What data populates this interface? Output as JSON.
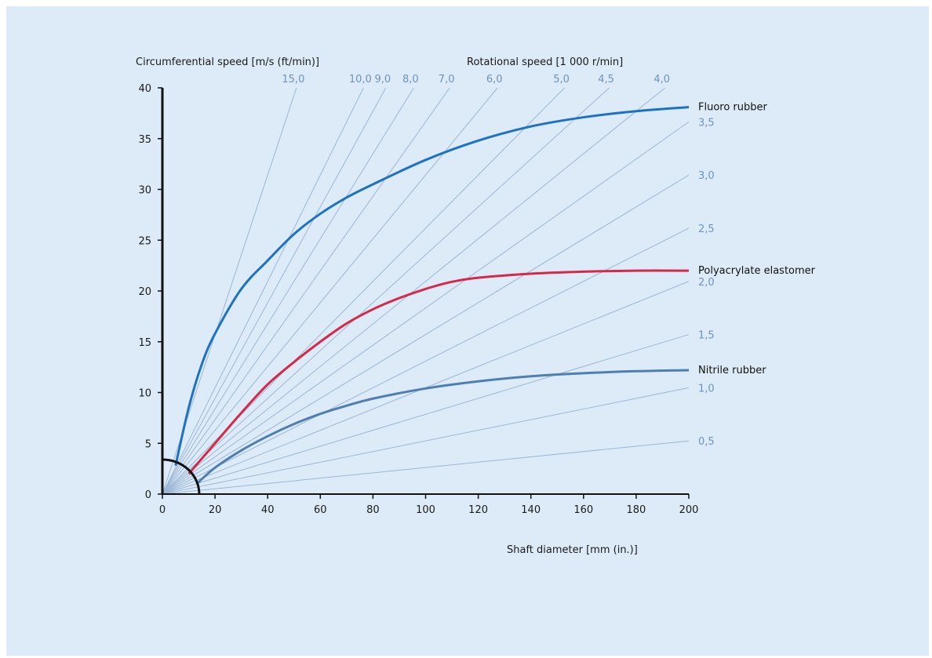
{
  "chart_data": {
    "type": "line",
    "title": "",
    "xlabel": "Shaft diameter [mm (in.)]",
    "ylabel": "Circumferential speed [m/s (ft/min)]",
    "top_label": "Rotational speed [1 000 r/min]",
    "xlim": [
      0,
      200
    ],
    "ylim": [
      0,
      40
    ],
    "x_ticks": [
      "0",
      "20",
      "40",
      "60",
      "80",
      "100",
      "120",
      "140",
      "160",
      "180",
      "200"
    ],
    "y_ticks": [
      "0",
      "5",
      "10",
      "15",
      "20",
      "25",
      "30",
      "35",
      "40"
    ],
    "grid": false,
    "rotational_speed_lines": [
      {
        "label": "15,0",
        "rpm_thousand": 15.0
      },
      {
        "label": "10,0",
        "rpm_thousand": 10.0
      },
      {
        "label": "9,0",
        "rpm_thousand": 9.0
      },
      {
        "label": "8,0",
        "rpm_thousand": 8.0
      },
      {
        "label": "7,0",
        "rpm_thousand": 7.0
      },
      {
        "label": "6,0",
        "rpm_thousand": 6.0
      },
      {
        "label": "5,0",
        "rpm_thousand": 5.0
      },
      {
        "label": "4,5",
        "rpm_thousand": 4.5
      },
      {
        "label": "4,0",
        "rpm_thousand": 4.0
      },
      {
        "label": "3,5",
        "rpm_thousand": 3.5
      },
      {
        "label": "3,0",
        "rpm_thousand": 3.0
      },
      {
        "label": "2,5",
        "rpm_thousand": 2.5
      },
      {
        "label": "2,0",
        "rpm_thousand": 2.0
      },
      {
        "label": "1,5",
        "rpm_thousand": 1.5
      },
      {
        "label": "1,0",
        "rpm_thousand": 1.0
      },
      {
        "label": "0,5",
        "rpm_thousand": 0.5
      }
    ],
    "series": [
      {
        "name": "Fluoro rubber",
        "color": "#1d72c1",
        "x": [
          5,
          10,
          15,
          20,
          30,
          40,
          50,
          60,
          70,
          80,
          100,
          120,
          140,
          160,
          180,
          200
        ],
        "y": [
          2.8,
          8.5,
          12.8,
          15.8,
          20.2,
          23.0,
          25.6,
          27.6,
          29.2,
          30.5,
          32.9,
          34.8,
          36.2,
          37.1,
          37.7,
          38.1
        ]
      },
      {
        "name": "Polyacrylate elastomer",
        "color": "#d6294a",
        "x": [
          10,
          20,
          30,
          40,
          50,
          60,
          70,
          80,
          90,
          100,
          110,
          120,
          140,
          160,
          180,
          200
        ],
        "y": [
          2.0,
          5.0,
          8.0,
          10.8,
          13.0,
          15.0,
          16.8,
          18.2,
          19.3,
          20.2,
          20.9,
          21.3,
          21.7,
          21.9,
          22.0,
          22.0
        ]
      },
      {
        "name": "Nitrile rubber",
        "color": "#4f7eb3",
        "x": [
          13,
          20,
          30,
          40,
          50,
          60,
          70,
          80,
          100,
          120,
          140,
          160,
          180,
          200
        ],
        "y": [
          1.0,
          2.6,
          4.3,
          5.7,
          6.9,
          7.9,
          8.7,
          9.4,
          10.4,
          11.1,
          11.6,
          11.9,
          12.1,
          12.2
        ]
      }
    ]
  }
}
